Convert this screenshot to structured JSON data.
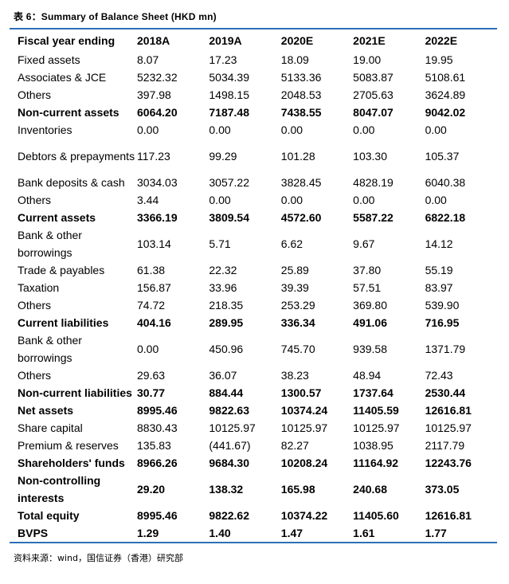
{
  "caption": "表 6：Summary  of Balance Sheet (HKD mn)",
  "header": [
    "Fiscal year ending",
    "2018A",
    "2019A",
    "2020E",
    "2021E",
    "2022E"
  ],
  "rows": [
    {
      "label": "Fixed assets",
      "values": [
        "8.07",
        "17.23",
        "18.09",
        "19.00",
        "19.95"
      ],
      "bold": false,
      "tall": false
    },
    {
      "label": "Associates & JCE",
      "values": [
        "5232.32",
        "5034.39",
        "5133.36",
        "5083.87",
        "5108.61"
      ],
      "bold": false,
      "tall": false
    },
    {
      "label": "Others",
      "values": [
        "397.98",
        "1498.15",
        "2048.53",
        "2705.63",
        "3624.89"
      ],
      "bold": false,
      "tall": false
    },
    {
      "label": "Non-current assets",
      "values": [
        "6064.20",
        "7187.48",
        "7438.55",
        "8047.07",
        "9042.02"
      ],
      "bold": true,
      "tall": false
    },
    {
      "label": "Inventories",
      "values": [
        "0.00",
        "0.00",
        "0.00",
        "0.00",
        "0.00"
      ],
      "bold": false,
      "tall": false
    },
    {
      "label": "Debtors & prepayments",
      "values": [
        "117.23",
        "99.29",
        "101.28",
        "103.30",
        "105.37"
      ],
      "bold": false,
      "tall": true
    },
    {
      "label": "Bank deposits & cash",
      "values": [
        "3034.03",
        "3057.22",
        "3828.45",
        "4828.19",
        "6040.38"
      ],
      "bold": false,
      "tall": false
    },
    {
      "label": "Others",
      "values": [
        "3.44",
        "0.00",
        "0.00",
        "0.00",
        "0.00"
      ],
      "bold": false,
      "tall": false
    },
    {
      "label": "Current assets",
      "values": [
        "3366.19",
        "3809.54",
        "4572.60",
        "5587.22",
        "6822.18"
      ],
      "bold": true,
      "tall": false
    },
    {
      "label": "Bank & other borrowings",
      "values": [
        "103.14",
        "5.71",
        "6.62",
        "9.67",
        "14.12"
      ],
      "bold": false,
      "tall": true
    },
    {
      "label": "Trade & payables",
      "values": [
        "61.38",
        "22.32",
        "25.89",
        "37.80",
        "55.19"
      ],
      "bold": false,
      "tall": false
    },
    {
      "label": "Taxation",
      "values": [
        "156.87",
        "33.96",
        "39.39",
        "57.51",
        "83.97"
      ],
      "bold": false,
      "tall": false
    },
    {
      "label": "Others",
      "values": [
        "74.72",
        "218.35",
        "253.29",
        "369.80",
        "539.90"
      ],
      "bold": false,
      "tall": false
    },
    {
      "label": "Current liabilities",
      "values": [
        "404.16",
        "289.95",
        "336.34",
        "491.06",
        "716.95"
      ],
      "bold": true,
      "tall": false
    },
    {
      "label": "Bank & other borrowings",
      "values": [
        "0.00",
        "450.96",
        "745.70",
        "939.58",
        "1371.79"
      ],
      "bold": false,
      "tall": true
    },
    {
      "label": "Others",
      "values": [
        "29.63",
        "36.07",
        "38.23",
        "48.94",
        "72.43"
      ],
      "bold": false,
      "tall": false
    },
    {
      "label": "Non-current liabilities",
      "values": [
        "30.77",
        "884.44",
        "1300.57",
        "1737.64",
        "2530.44"
      ],
      "bold": true,
      "tall": false
    },
    {
      "label": "Net assets",
      "values": [
        "8995.46",
        "9822.63",
        "10374.24",
        "11405.59",
        "12616.81"
      ],
      "bold": true,
      "tall": false
    },
    {
      "label": "Share capital",
      "values": [
        "8830.43",
        "10125.97",
        "10125.97",
        "10125.97",
        "10125.97"
      ],
      "bold": false,
      "tall": false
    },
    {
      "label": "Premium & reserves",
      "values": [
        "135.83",
        "(441.67)",
        "82.27",
        "1038.95",
        "2117.79"
      ],
      "bold": false,
      "tall": false
    },
    {
      "label": "Shareholders' funds",
      "values": [
        "8966.26",
        "9684.30",
        "10208.24",
        "11164.92",
        "12243.76"
      ],
      "bold": true,
      "tall": false
    },
    {
      "label": "Non-controlling interests",
      "values": [
        "29.20",
        "138.32",
        "165.98",
        "240.68",
        "373.05"
      ],
      "bold": true,
      "tall": true
    },
    {
      "label": "Total equity",
      "values": [
        "8995.46",
        "9822.62",
        "10374.22",
        "11405.60",
        "12616.81"
      ],
      "bold": true,
      "tall": false
    },
    {
      "label": "BVPS",
      "values": [
        "1.29",
        "1.40",
        "1.47",
        "1.61",
        "1.77"
      ],
      "bold": true,
      "tall": false
    }
  ],
  "source": "资料来源：wind，国信证券（香港）研究部"
}
